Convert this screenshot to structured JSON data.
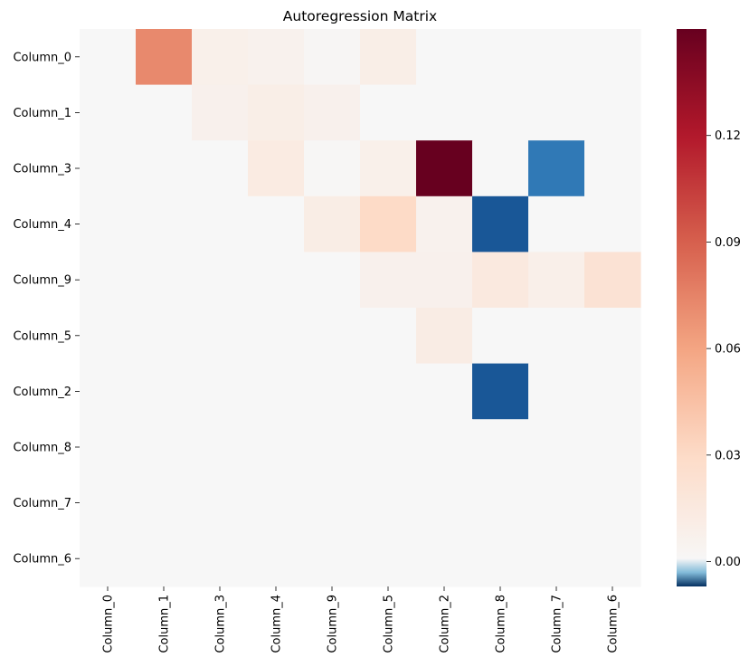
{
  "chart_data": {
    "type": "heatmap",
    "title": "Autoregression Matrix",
    "xlabel": "",
    "ylabel": "",
    "x_labels": [
      "Column_0",
      "Column_1",
      "Column_3",
      "Column_4",
      "Column_9",
      "Column_5",
      "Column_2",
      "Column_8",
      "Column_7",
      "Column_6"
    ],
    "y_labels": [
      "Column_0",
      "Column_1",
      "Column_3",
      "Column_4",
      "Column_9",
      "Column_5",
      "Column_2",
      "Column_8",
      "Column_7",
      "Column_6"
    ],
    "values": [
      [
        0,
        0.072,
        0.008,
        0.006,
        0.002,
        0.01,
        0,
        0,
        0,
        0
      ],
      [
        0,
        0,
        0.007,
        0.01,
        0.007,
        0,
        0,
        0,
        0,
        0
      ],
      [
        0,
        0,
        0,
        0.013,
        0.001,
        0.008,
        0.15,
        0,
        -0.005,
        0
      ],
      [
        0,
        0,
        0,
        0,
        0.011,
        0.03,
        0.006,
        -0.006,
        0,
        0
      ],
      [
        0,
        0,
        0,
        0,
        0,
        0.007,
        0.007,
        0.015,
        0.009,
        0.022
      ],
      [
        0,
        0,
        0,
        0,
        0,
        0,
        0.012,
        0,
        0,
        0
      ],
      [
        0,
        0,
        0,
        0,
        0,
        0,
        0,
        -0.006,
        0,
        0
      ],
      [
        0,
        0,
        0,
        0,
        0,
        0,
        0,
        0,
        0,
        0
      ],
      [
        0,
        0,
        0,
        0,
        0,
        0,
        0,
        0,
        0,
        0
      ],
      [
        0,
        0,
        0,
        0,
        0,
        0,
        0,
        0,
        0,
        0
      ]
    ],
    "colormap": "RdBu_r",
    "vmin": -0.007,
    "vmax": 0.15,
    "colorbar_ticks": [
      "0.12",
      "0.09",
      "0.06",
      "0.03",
      "0.00"
    ],
    "colorbar_tick_values": [
      0.12,
      0.09,
      0.06,
      0.03,
      0.0
    ],
    "grid": false,
    "legend": "colorbar-right"
  }
}
